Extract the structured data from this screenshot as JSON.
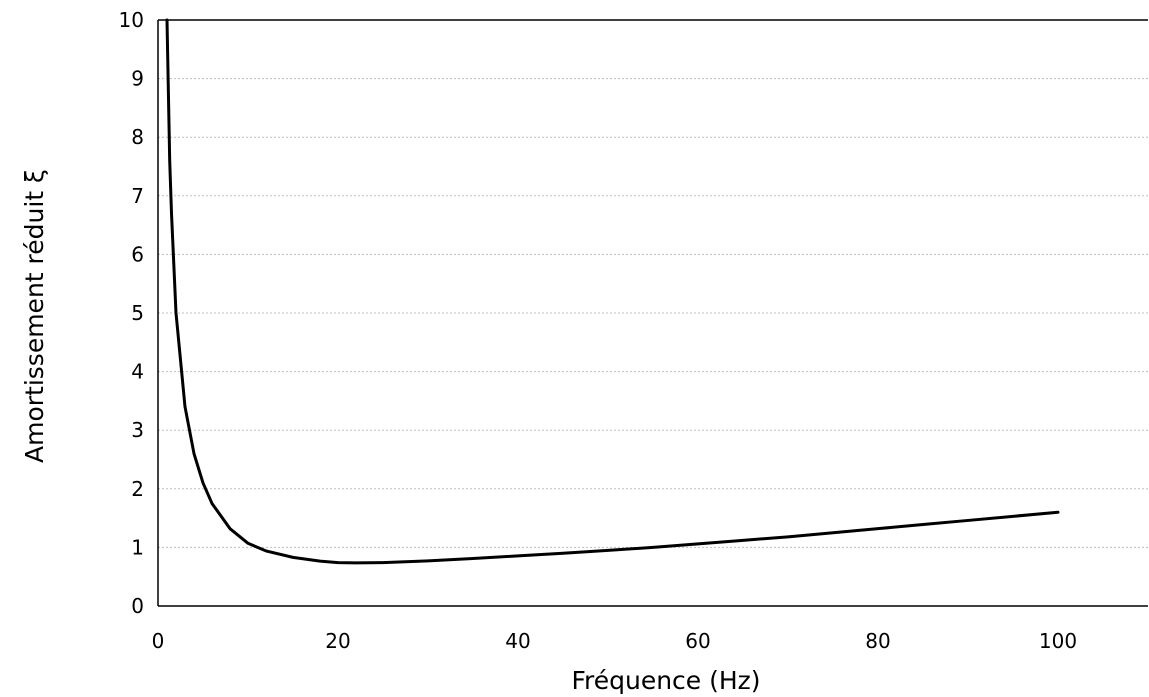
{
  "chart_data": {
    "type": "line",
    "title": "",
    "xlabel": "Fréquence (Hz)",
    "ylabel": "Amortissement réduit ξ",
    "xlim": [
      0,
      110
    ],
    "ylim": [
      0,
      10
    ],
    "xticks": [
      0,
      20,
      40,
      60,
      80,
      100
    ],
    "yticks": [
      0,
      1,
      2,
      3,
      4,
      5,
      6,
      7,
      8,
      9,
      10
    ],
    "grid": "horizontal dashed",
    "line_color": "#000000",
    "series": [
      {
        "x": [
          1.0,
          1.3,
          1.5,
          2,
          3,
          4,
          5,
          6,
          8,
          10,
          12,
          15,
          18,
          20,
          22,
          25,
          30,
          35,
          40,
          45,
          50,
          55,
          60,
          65,
          70,
          75,
          80,
          85,
          90,
          95,
          100
        ],
        "values": [
          10.0,
          7.6,
          6.7,
          5.0,
          3.4,
          2.6,
          2.1,
          1.75,
          1.32,
          1.07,
          0.94,
          0.83,
          0.765,
          0.74,
          0.735,
          0.74,
          0.77,
          0.81,
          0.855,
          0.9,
          0.95,
          1.0,
          1.06,
          1.12,
          1.18,
          1.25,
          1.32,
          1.39,
          1.46,
          1.53,
          1.6
        ]
      }
    ]
  }
}
